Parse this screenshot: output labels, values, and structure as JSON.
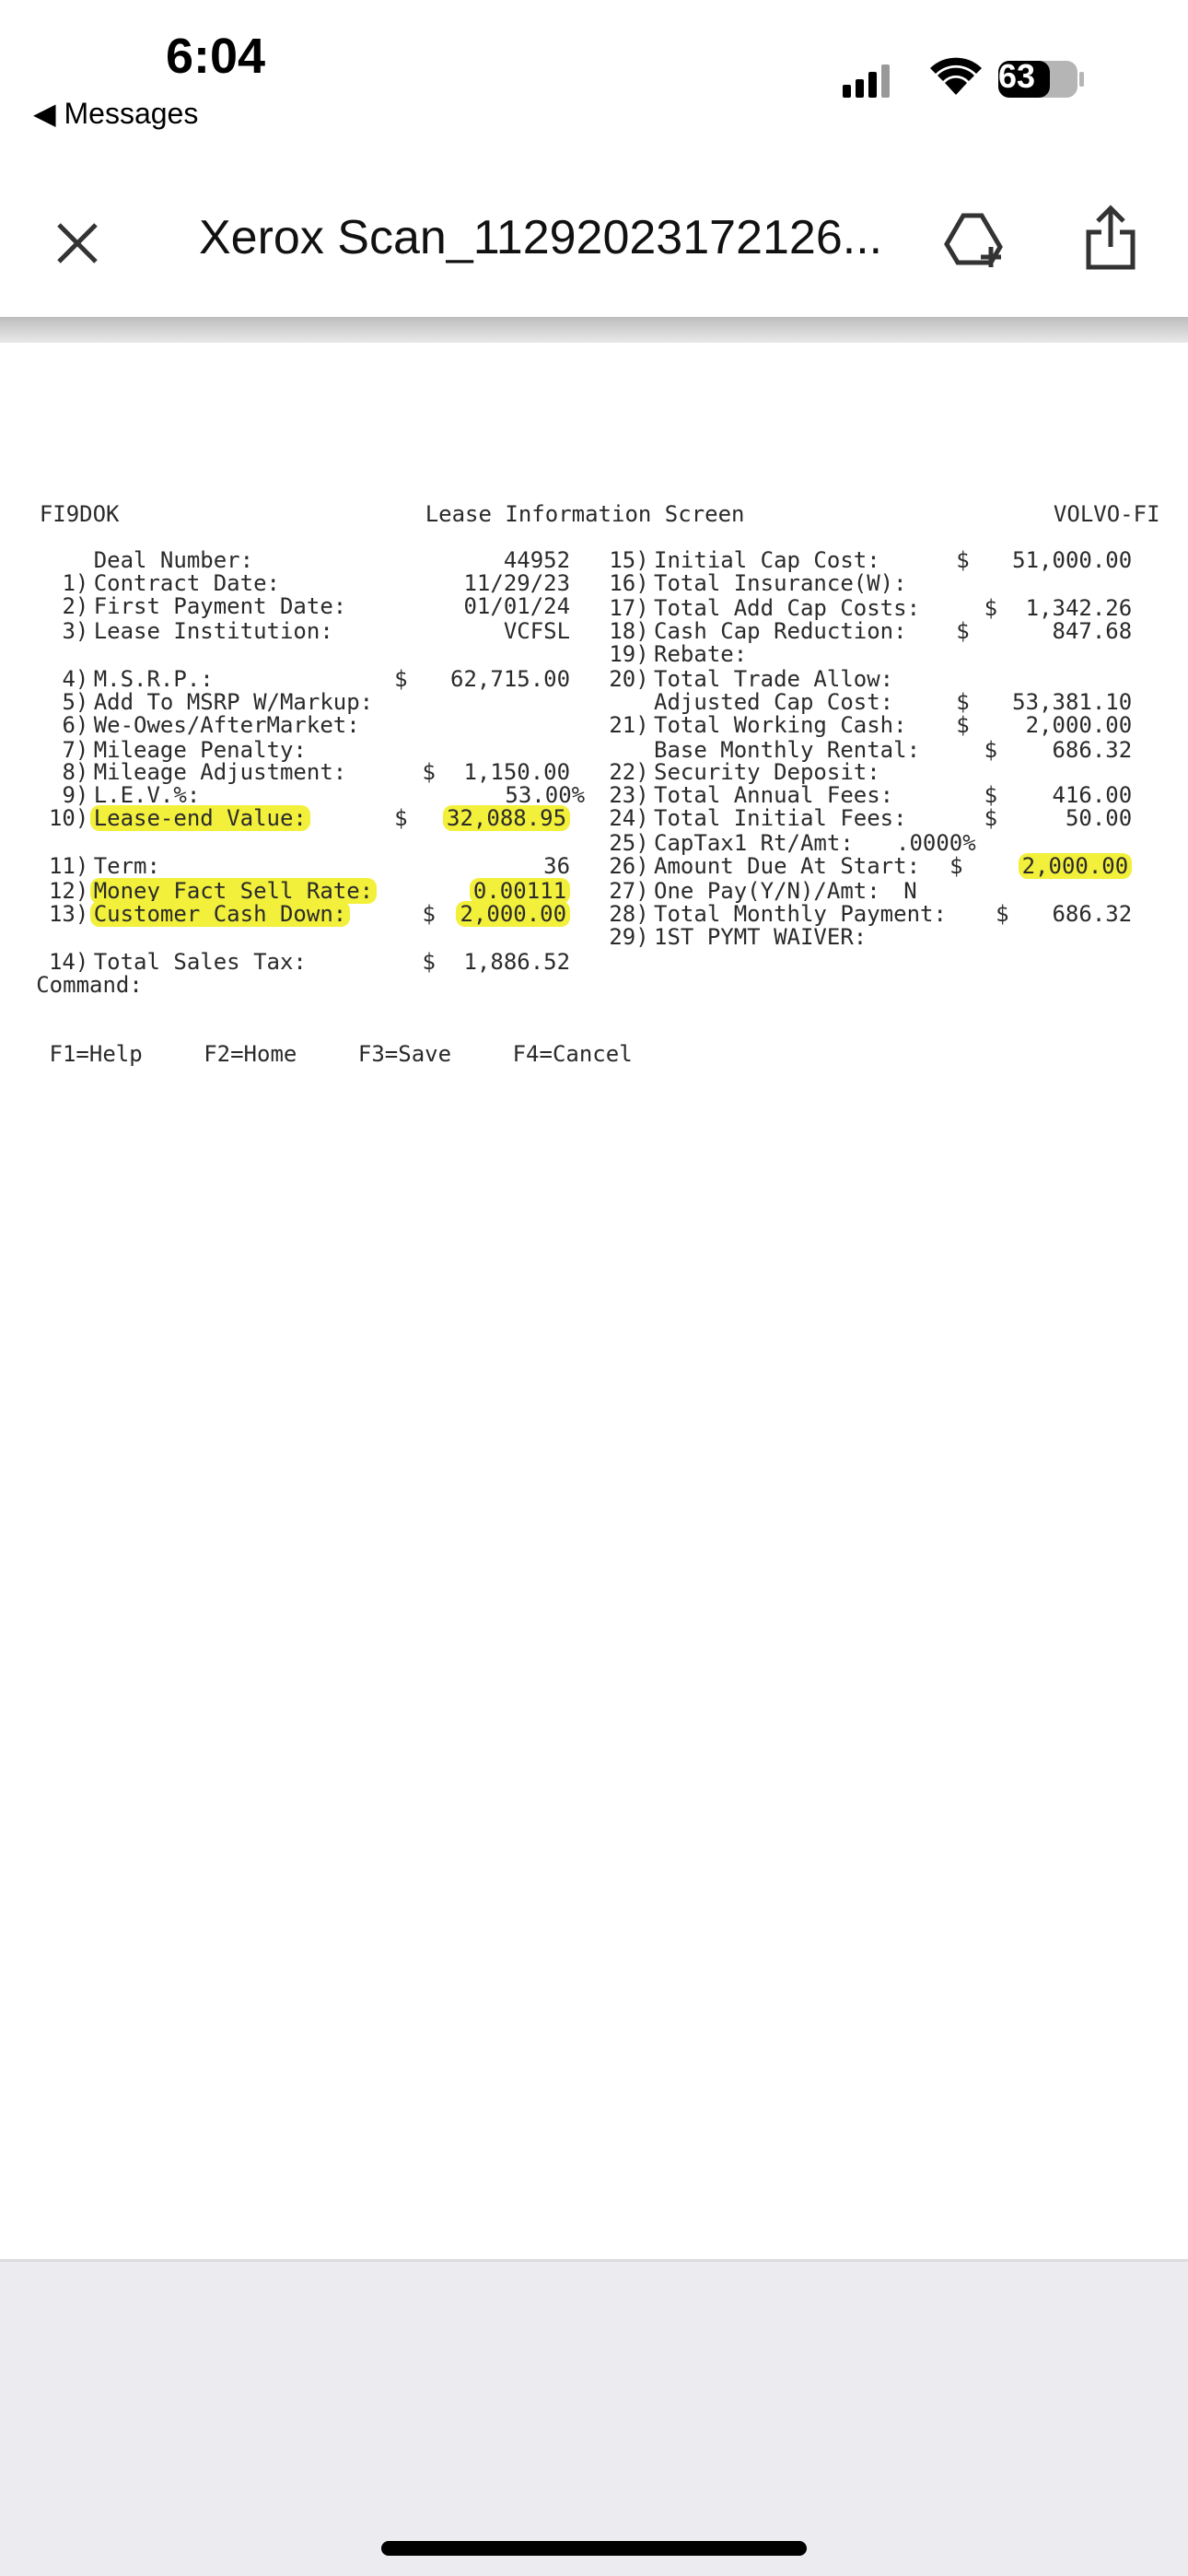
{
  "status_bar": {
    "time": "6:04",
    "back": "Messages",
    "battery": "63"
  },
  "toolbar": {
    "title": "Xerox Scan_11292023172126..."
  },
  "document": {
    "header": {
      "left": "FI9DOK",
      "center": "Lease Information Screen",
      "right": "VOLVO-FI"
    },
    "left_fields": [
      {
        "label": "Deal Number:",
        "value": "44952"
      },
      {
        "num": "1)",
        "label": "Contract Date:",
        "value": "11/29/23"
      },
      {
        "num": "2)",
        "label": "First Payment Date:",
        "value": "01/01/24"
      },
      {
        "num": "3)",
        "label": "Lease Institution:",
        "value": "VCFSL"
      },
      {
        "num": "4)",
        "label": "M.S.R.P.:",
        "cur": "$",
        "value": "62,715.00"
      },
      {
        "num": "5)",
        "label": "Add To MSRP W/Markup:"
      },
      {
        "num": "6)",
        "label": "We-Owes/AfterMarket:"
      },
      {
        "num": "7)",
        "label": "Mileage Penalty:"
      },
      {
        "num": "8)",
        "label": "Mileage Adjustment:",
        "cur": "$",
        "value": "1,150.00"
      },
      {
        "num": "9)",
        "label": "L.E.V.%:",
        "value": "53.00%"
      },
      {
        "num": "10)",
        "label": "Lease-end Value:",
        "cur": "$",
        "value": "32,088.95",
        "highlighted": true
      },
      {
        "num": "11)",
        "label": "Term:",
        "value": "36"
      },
      {
        "num": "12)",
        "label": "Money Fact Sell Rate:",
        "value": "0.00111",
        "highlighted": true
      },
      {
        "num": "13)",
        "label": "Customer Cash Down:",
        "cur": "$",
        "value": "2,000.00",
        "highlighted": true
      },
      {
        "num": "14)",
        "label": "Total Sales Tax:",
        "cur": "$",
        "value": "1,886.52"
      }
    ],
    "right_fields": [
      {
        "num": "15)",
        "label": "Initial Cap Cost:",
        "cur": "$",
        "value": "51,000.00"
      },
      {
        "num": "16)",
        "label": "Total Insurance(W):"
      },
      {
        "num": "17)",
        "label": "Total Add Cap Costs:",
        "cur": "$",
        "value": "1,342.26"
      },
      {
        "num": "18)",
        "label": "Cash Cap Reduction:",
        "cur": "$",
        "value": "847.68"
      },
      {
        "num": "19)",
        "label": "Rebate:"
      },
      {
        "num": "20)",
        "label": "Total Trade Allow:"
      },
      {
        "label": "Adjusted Cap Cost:",
        "cur": "$",
        "value": "53,381.10"
      },
      {
        "num": "21)",
        "label": "Total Working Cash:",
        "cur": "$",
        "value": "2,000.00"
      },
      {
        "label": "Base Monthly Rental:",
        "cur": "$",
        "value": "686.32"
      },
      {
        "num": "22)",
        "label": "Security Deposit:"
      },
      {
        "num": "23)",
        "label": "Total Annual Fees:",
        "cur": "$",
        "value": "416.00"
      },
      {
        "num": "24)",
        "label": "Total Initial Fees:",
        "cur": "$",
        "value": "50.00"
      },
      {
        "num": "25)",
        "label": "CapTax1 Rt/Amt:",
        "value": ".0000%"
      },
      {
        "num": "26)",
        "label": "Amount Due At Start:",
        "cur": "$",
        "value": "2,000.00",
        "highlighted": true
      },
      {
        "num": "27)",
        "label": "One Pay(Y/N)/Amt:",
        "value": "N"
      },
      {
        "num": "28)",
        "label": "Total Monthly Payment:",
        "cur": "$",
        "value": "686.32"
      },
      {
        "num": "29)",
        "label": "1ST PYMT WAIVER:"
      }
    ],
    "command": "Command:",
    "function_keys": [
      "F1=Help",
      "F2=Home",
      "F3=Save",
      "F4=Cancel"
    ]
  }
}
